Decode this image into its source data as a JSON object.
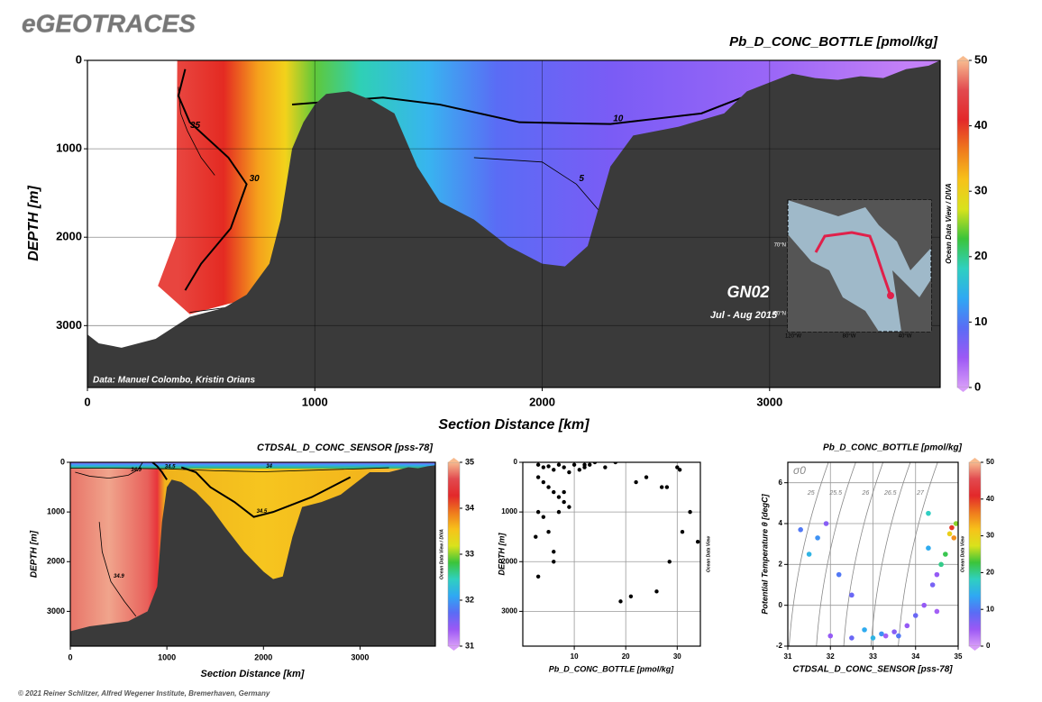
{
  "header": "eGEOTRACES",
  "footer": "© 2021 Reiner Schlitzer, Alfred Wegener Institute, Bremerhaven, Germany",
  "colormap": [
    "#d79cf8",
    "#9c58f5",
    "#5a6cf5",
    "#2fa8f3",
    "#2fd0c0",
    "#3bc43a",
    "#d9e21c",
    "#f7c21a",
    "#ef7a1d",
    "#e3282a",
    "#e24a4f",
    "#f7bb8f"
  ],
  "chart_data": [
    {
      "type": "section",
      "title": "Pb_D_CONC_BOTTLE [pmol/kg]",
      "x_label": "Section Distance [km]",
      "y_label": "DEPTH [m]",
      "xlim": [
        0,
        3750
      ],
      "ylim": [
        3700,
        0
      ],
      "xticks": [
        0,
        1000,
        2000,
        3000
      ],
      "yticks": [
        0,
        1000,
        2000,
        3000
      ],
      "grid": true,
      "side_label": "Ocean Data View / DIVA",
      "credit": "Data: Manuel Colombo, Kristin Orians",
      "annotations": [
        "GN02",
        "Jul - Aug 2015"
      ],
      "map": {
        "lon_labels": [
          "120°W",
          "80°W",
          "40°W"
        ],
        "lat_labels": [
          "70°N",
          "60°N"
        ]
      },
      "colorbar": {
        "lim": [
          0,
          50
        ],
        "ticks": [
          0,
          10,
          20,
          30,
          40,
          50
        ]
      },
      "bottom": {
        "x": [
          0,
          50,
          150,
          300,
          450,
          600,
          700,
          800,
          850,
          900,
          950,
          1000,
          1050,
          1150,
          1250,
          1350,
          1400,
          1450,
          1550,
          1700,
          1850,
          2000,
          2100,
          2200,
          2300,
          2400,
          2500,
          2600,
          2800,
          2900,
          3000,
          3100,
          3200,
          3300,
          3400,
          3500,
          3600,
          3700,
          3750
        ],
        "depth": [
          3100,
          3200,
          3250,
          3150,
          2900,
          2800,
          2650,
          2300,
          1800,
          1000,
          700,
          500,
          380,
          350,
          450,
          600,
          900,
          1200,
          1600,
          1800,
          2100,
          2300,
          2330,
          2100,
          1200,
          850,
          800,
          750,
          600,
          350,
          250,
          150,
          200,
          220,
          180,
          200,
          100,
          60,
          0
        ]
      },
      "contours": [
        {
          "level": 35,
          "x": [
            400,
            410,
            440,
            500,
            560
          ],
          "depth": [
            300,
            600,
            800,
            1100,
            1300
          ]
        },
        {
          "level": 30,
          "x": [
            430,
            400,
            450,
            620,
            700,
            630,
            500,
            430
          ],
          "depth": [
            100,
            400,
            700,
            1100,
            1400,
            1900,
            2300,
            2600
          ]
        },
        {
          "level": 25,
          "x": [
            450,
            600,
            800,
            880
          ],
          "depth": [
            2850,
            2800,
            2620,
            2500
          ]
        },
        {
          "level": 10,
          "x": [
            900,
            1300,
            1550,
            1900,
            2300,
            2700,
            2900,
            3100
          ],
          "depth": [
            500,
            420,
            500,
            700,
            720,
            600,
            400,
            200
          ]
        },
        {
          "level": 5,
          "x": [
            1700,
            2000,
            2150,
            2250,
            2300
          ],
          "depth": [
            1100,
            1150,
            1400,
            1700,
            1950
          ]
        }
      ]
    },
    {
      "type": "section",
      "title": "CTDSAL_D_CONC_SENSOR [pss-78]",
      "x_label": "Section Distance [km]",
      "y_label": "DEPTH [m]",
      "xlim": [
        0,
        3780
      ],
      "ylim": [
        3700,
        0
      ],
      "xticks": [
        0,
        1000,
        2000,
        3000
      ],
      "yticks": [
        0,
        1000,
        2000,
        3000
      ],
      "grid": false,
      "side_label": "Ocean Data View / DIVA",
      "colorbar": {
        "lim": [
          31,
          35
        ],
        "ticks": [
          31,
          32,
          33,
          34,
          35
        ]
      },
      "bottom": {
        "x": [
          0,
          100,
          200,
          400,
          600,
          800,
          900,
          950,
          1000,
          1050,
          1150,
          1300,
          1450,
          1600,
          1800,
          2000,
          2100,
          2200,
          2300,
          2400,
          2600,
          2800,
          3000,
          3100,
          3300,
          3400,
          3500,
          3600,
          3700,
          3780
        ],
        "depth": [
          3400,
          3350,
          3300,
          3250,
          3200,
          3000,
          2500,
          1200,
          500,
          350,
          400,
          600,
          900,
          1300,
          1800,
          2200,
          2350,
          2300,
          1500,
          900,
          800,
          650,
          350,
          200,
          200,
          150,
          100,
          120,
          80,
          60
        ]
      },
      "contours": [
        {
          "level": 34.9,
          "x": [
            50,
            200,
            400,
            600,
            700,
            750
          ],
          "depth": [
            200,
            280,
            320,
            260,
            150,
            0
          ]
        },
        {
          "level": 34.5,
          "x": [
            850,
            900,
            950,
            1000
          ],
          "depth": [
            0,
            80,
            200,
            350
          ]
        },
        {
          "level": 34,
          "x": [
            0,
            500,
            1000,
            1500,
            2000,
            2500,
            3000,
            3300
          ],
          "depth": [
            120,
            120,
            130,
            170,
            190,
            160,
            130,
            110
          ]
        },
        {
          "level": 34.5,
          "x": [
            1150,
            1300,
            1450,
            1700,
            1900,
            2100,
            2500,
            2900
          ],
          "depth": [
            100,
            200,
            500,
            800,
            1100,
            1000,
            700,
            300
          ]
        },
        {
          "level": 34.9,
          "x": [
            300,
            330,
            420,
            560,
            680
          ],
          "depth": [
            1200,
            1800,
            2400,
            2800,
            3100
          ]
        }
      ]
    },
    {
      "type": "scatter",
      "x_label": "Pb_D_CONC_BOTTLE [pmol/kg]",
      "y_label": "DEPTH [m]",
      "side_label": "Ocean Data View",
      "xlim": [
        0,
        34.5
      ],
      "ylim": [
        3700,
        0
      ],
      "xticks": [
        10,
        20,
        30
      ],
      "yticks": [
        0,
        1000,
        2000,
        3000
      ],
      "grid": true,
      "x": [
        3,
        4,
        5,
        6,
        7,
        8,
        9,
        10,
        11,
        12,
        13,
        3,
        4,
        5,
        6,
        7,
        8,
        9,
        3,
        4,
        5,
        6,
        6,
        3,
        2.5,
        12,
        14,
        16,
        18,
        19,
        21,
        22,
        24,
        26,
        27,
        28,
        28.5,
        30,
        30.5,
        31,
        32.5,
        34,
        7,
        8
      ],
      "values": [
        50,
        100,
        80,
        150,
        50,
        100,
        200,
        50,
        150,
        100,
        50,
        300,
        400,
        500,
        600,
        700,
        800,
        900,
        1000,
        1100,
        1400,
        1800,
        2000,
        2300,
        1500,
        50,
        0,
        100,
        0,
        2800,
        2700,
        400,
        300,
        2600,
        500,
        500,
        2000,
        100,
        150,
        1400,
        1000,
        1600,
        1000,
        600
      ]
    },
    {
      "type": "scatter",
      "title": "Pb_D_CONC_BOTTLE [pmol/kg]",
      "x_label": "CTDSAL_D_CONC_SENSOR [pss-78]",
      "y_label": "Potential Temperature θ [degC]",
      "side_label": "Ocean Data View",
      "sigma_label": "σ0",
      "isopycnals": [
        25,
        25.5,
        26,
        26.5,
        27
      ],
      "xlim": [
        31,
        35
      ],
      "ylim": [
        -2,
        7
      ],
      "xticks": [
        31,
        32,
        33,
        34,
        35
      ],
      "yticks": [
        -2,
        0,
        2,
        4,
        6
      ],
      "grid": true,
      "colorbar": {
        "lim": [
          0,
          50
        ],
        "ticks": [
          0,
          10,
          20,
          30,
          40,
          50
        ]
      },
      "x": [
        31.3,
        31.5,
        31.7,
        32,
        32.5,
        33,
        33.2,
        33.5,
        33.8,
        34,
        34.2,
        34.4,
        34.5,
        34.6,
        34.7,
        34.8,
        34.85,
        34.9,
        34.95,
        34.5,
        32.2,
        32.5,
        33.6,
        32.8,
        31.9,
        34.3,
        34.3,
        33.3
      ],
      "values": [
        3.7,
        2.5,
        3.3,
        -1.5,
        -1.6,
        -1.6,
        -1.4,
        -1.3,
        -1,
        -0.5,
        0,
        1,
        1.5,
        2,
        2.5,
        3.5,
        3.8,
        3.3,
        4,
        -0.3,
        1.5,
        0.5,
        -1.5,
        -1.2,
        4,
        4.5,
        2.8,
        -1.5
      ],
      "color_values": [
        10,
        15,
        12,
        5,
        8,
        15,
        12,
        6,
        5,
        8,
        5,
        7,
        5,
        20,
        22,
        30,
        40,
        35,
        25,
        4,
        10,
        8,
        10,
        14,
        6,
        18,
        14,
        4
      ]
    }
  ]
}
